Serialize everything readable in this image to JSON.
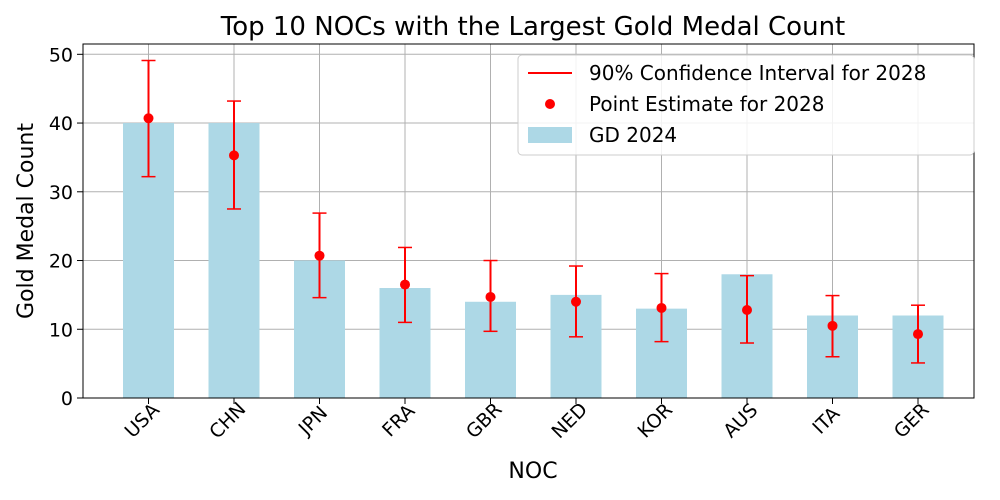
{
  "chart_data": {
    "type": "bar",
    "title": "Top 10 NOCs with the Largest Gold Medal Count",
    "xlabel": "NOC",
    "ylabel": "Gold Medal Count",
    "categories": [
      "USA",
      "CHN",
      "JPN",
      "FRA",
      "GBR",
      "NED",
      "KOR",
      "AUS",
      "ITA",
      "GER"
    ],
    "series": [
      {
        "name": "GD 2024",
        "type": "bar",
        "color": "#add8e6",
        "values": [
          40,
          40,
          20,
          16,
          14,
          15,
          13,
          18,
          12,
          12
        ]
      },
      {
        "name": "Point Estimate for 2028",
        "type": "point",
        "color": "#ff0000",
        "values": [
          40.7,
          35.3,
          20.7,
          16.5,
          14.7,
          14.0,
          13.1,
          12.8,
          10.5,
          9.3
        ]
      },
      {
        "name": "90% Confidence Interval for 2028",
        "type": "errorbar",
        "color": "#ff0000",
        "lower": [
          32.2,
          27.5,
          14.6,
          11.0,
          9.7,
          8.9,
          8.2,
          8.0,
          6.0,
          5.1
        ],
        "upper": [
          49.1,
          43.2,
          26.9,
          21.9,
          20.0,
          19.2,
          18.1,
          17.8,
          14.9,
          13.5
        ]
      }
    ],
    "yticks": [
      0,
      10,
      20,
      30,
      40,
      50
    ],
    "ylim": [
      0,
      51.5
    ],
    "grid": true,
    "legend_position": "top-right",
    "legend_order": [
      "90% Confidence Interval for 2028",
      "Point Estimate for 2028",
      "GD 2024"
    ]
  }
}
